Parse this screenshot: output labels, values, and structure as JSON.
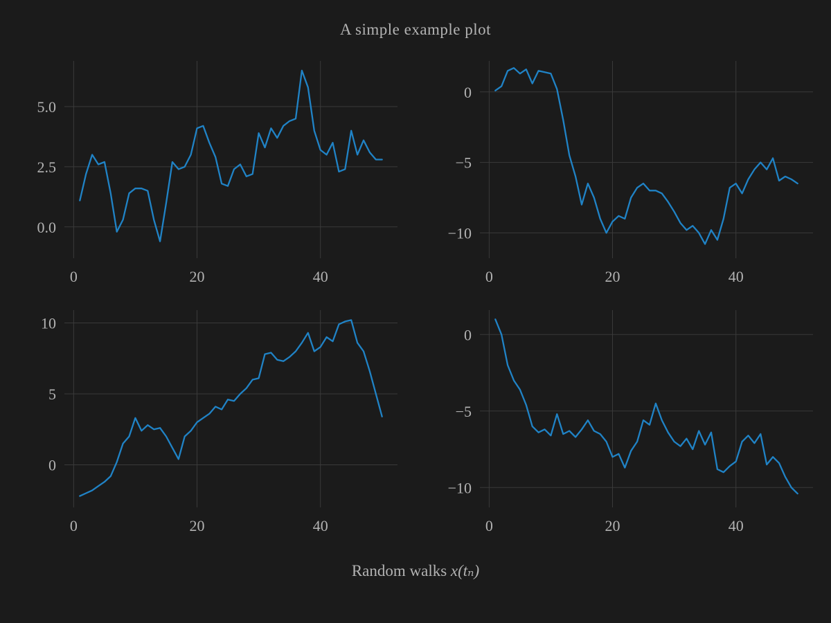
{
  "figure": {
    "title": "A simple example plot",
    "xlabel_prefix": "Random walks ",
    "xlabel_math": "x(tₙ)",
    "background": "#1b1b1b",
    "text_color": "#b3b3b3",
    "grid_color": "#3a3a3a",
    "line_color": "#2083c6"
  },
  "chart_data": [
    {
      "type": "line",
      "name": "random-walk-top-left",
      "x_start": 1,
      "xlim": [
        -1.5,
        52.5
      ],
      "ylim": [
        -1.3,
        6.9
      ],
      "xticks": [
        0,
        20,
        40
      ],
      "xtick_labels": [
        "0",
        "20",
        "40"
      ],
      "yticks": [
        0,
        2.5,
        5
      ],
      "ytick_labels": [
        "0.0",
        "2.5",
        "5.0"
      ],
      "values": [
        1.1,
        2.2,
        3.0,
        2.6,
        2.7,
        1.4,
        -0.2,
        0.3,
        1.4,
        1.6,
        1.6,
        1.5,
        0.3,
        -0.6,
        1.0,
        2.7,
        2.4,
        2.5,
        3.0,
        4.1,
        4.2,
        3.5,
        2.9,
        1.8,
        1.7,
        2.4,
        2.6,
        2.1,
        2.2,
        3.9,
        3.3,
        4.1,
        3.7,
        4.2,
        4.4,
        4.5,
        6.5,
        5.8,
        4.0,
        3.2,
        3.0,
        3.5,
        2.3,
        2.4,
        4.0,
        3.0,
        3.6,
        3.1,
        2.8,
        2.8
      ]
    },
    {
      "type": "line",
      "name": "random-walk-top-right",
      "x_start": 1,
      "xlim": [
        -1.5,
        52.5
      ],
      "ylim": [
        -11.8,
        2.2
      ],
      "xticks": [
        0,
        20,
        40
      ],
      "xtick_labels": [
        "0",
        "20",
        "40"
      ],
      "yticks": [
        0,
        -5,
        -10
      ],
      "ytick_labels": [
        "0",
        "−5",
        "−10"
      ],
      "values": [
        0.1,
        0.4,
        1.5,
        1.7,
        1.3,
        1.6,
        0.6,
        1.5,
        1.4,
        1.3,
        0.2,
        -2.0,
        -4.5,
        -6.0,
        -8.0,
        -6.5,
        -7.5,
        -9.0,
        -10.0,
        -9.2,
        -8.8,
        -9.0,
        -7.5,
        -6.8,
        -6.5,
        -7.0,
        -7.0,
        -7.2,
        -7.8,
        -8.5,
        -9.3,
        -9.8,
        -9.5,
        -10.0,
        -10.8,
        -9.8,
        -10.5,
        -9.0,
        -6.8,
        -6.5,
        -7.2,
        -6.2,
        -5.5,
        -5.0,
        -5.5,
        -4.7,
        -6.3,
        -6.0,
        -6.2,
        -6.5
      ]
    },
    {
      "type": "line",
      "name": "random-walk-bottom-left",
      "x_start": 1,
      "xlim": [
        -1.5,
        52.5
      ],
      "ylim": [
        -3.0,
        10.9
      ],
      "xticks": [
        0,
        20,
        40
      ],
      "xtick_labels": [
        "0",
        "20",
        "40"
      ],
      "yticks": [
        0,
        5,
        10
      ],
      "ytick_labels": [
        "0",
        "5",
        "10"
      ],
      "values": [
        -2.2,
        -2.0,
        -1.8,
        -1.5,
        -1.2,
        -0.8,
        0.2,
        1.5,
        2.0,
        3.3,
        2.4,
        2.8,
        2.5,
        2.6,
        2.0,
        1.2,
        0.4,
        2.0,
        2.4,
        3.0,
        3.3,
        3.6,
        4.1,
        3.9,
        4.6,
        4.5,
        5.0,
        5.4,
        6.0,
        6.1,
        7.8,
        7.9,
        7.4,
        7.3,
        7.6,
        8.0,
        8.6,
        9.3,
        8.0,
        8.3,
        9.0,
        8.7,
        9.9,
        10.1,
        10.2,
        8.6,
        8.0,
        6.6,
        5.0,
        3.4
      ]
    },
    {
      "type": "line",
      "name": "random-walk-bottom-right",
      "x_start": 1,
      "xlim": [
        -1.5,
        52.5
      ],
      "ylim": [
        -11.3,
        1.6
      ],
      "xticks": [
        0,
        20,
        40
      ],
      "xtick_labels": [
        "0",
        "20",
        "40"
      ],
      "yticks": [
        0,
        -5,
        -10
      ],
      "ytick_labels": [
        "0",
        "−5",
        "−10"
      ],
      "values": [
        1.0,
        0.0,
        -2.0,
        -3.0,
        -3.6,
        -4.6,
        -6.0,
        -6.4,
        -6.2,
        -6.6,
        -5.2,
        -6.5,
        -6.3,
        -6.7,
        -6.2,
        -5.6,
        -6.3,
        -6.5,
        -7.0,
        -8.0,
        -7.8,
        -8.7,
        -7.6,
        -7.0,
        -5.6,
        -5.9,
        -4.5,
        -5.6,
        -6.4,
        -7.0,
        -7.3,
        -6.8,
        -7.5,
        -6.3,
        -7.2,
        -6.4,
        -8.8,
        -9.0,
        -8.6,
        -8.3,
        -7.0,
        -6.6,
        -7.1,
        -6.5,
        -8.5,
        -8.0,
        -8.4,
        -9.3,
        -10.0,
        -10.4
      ]
    }
  ]
}
